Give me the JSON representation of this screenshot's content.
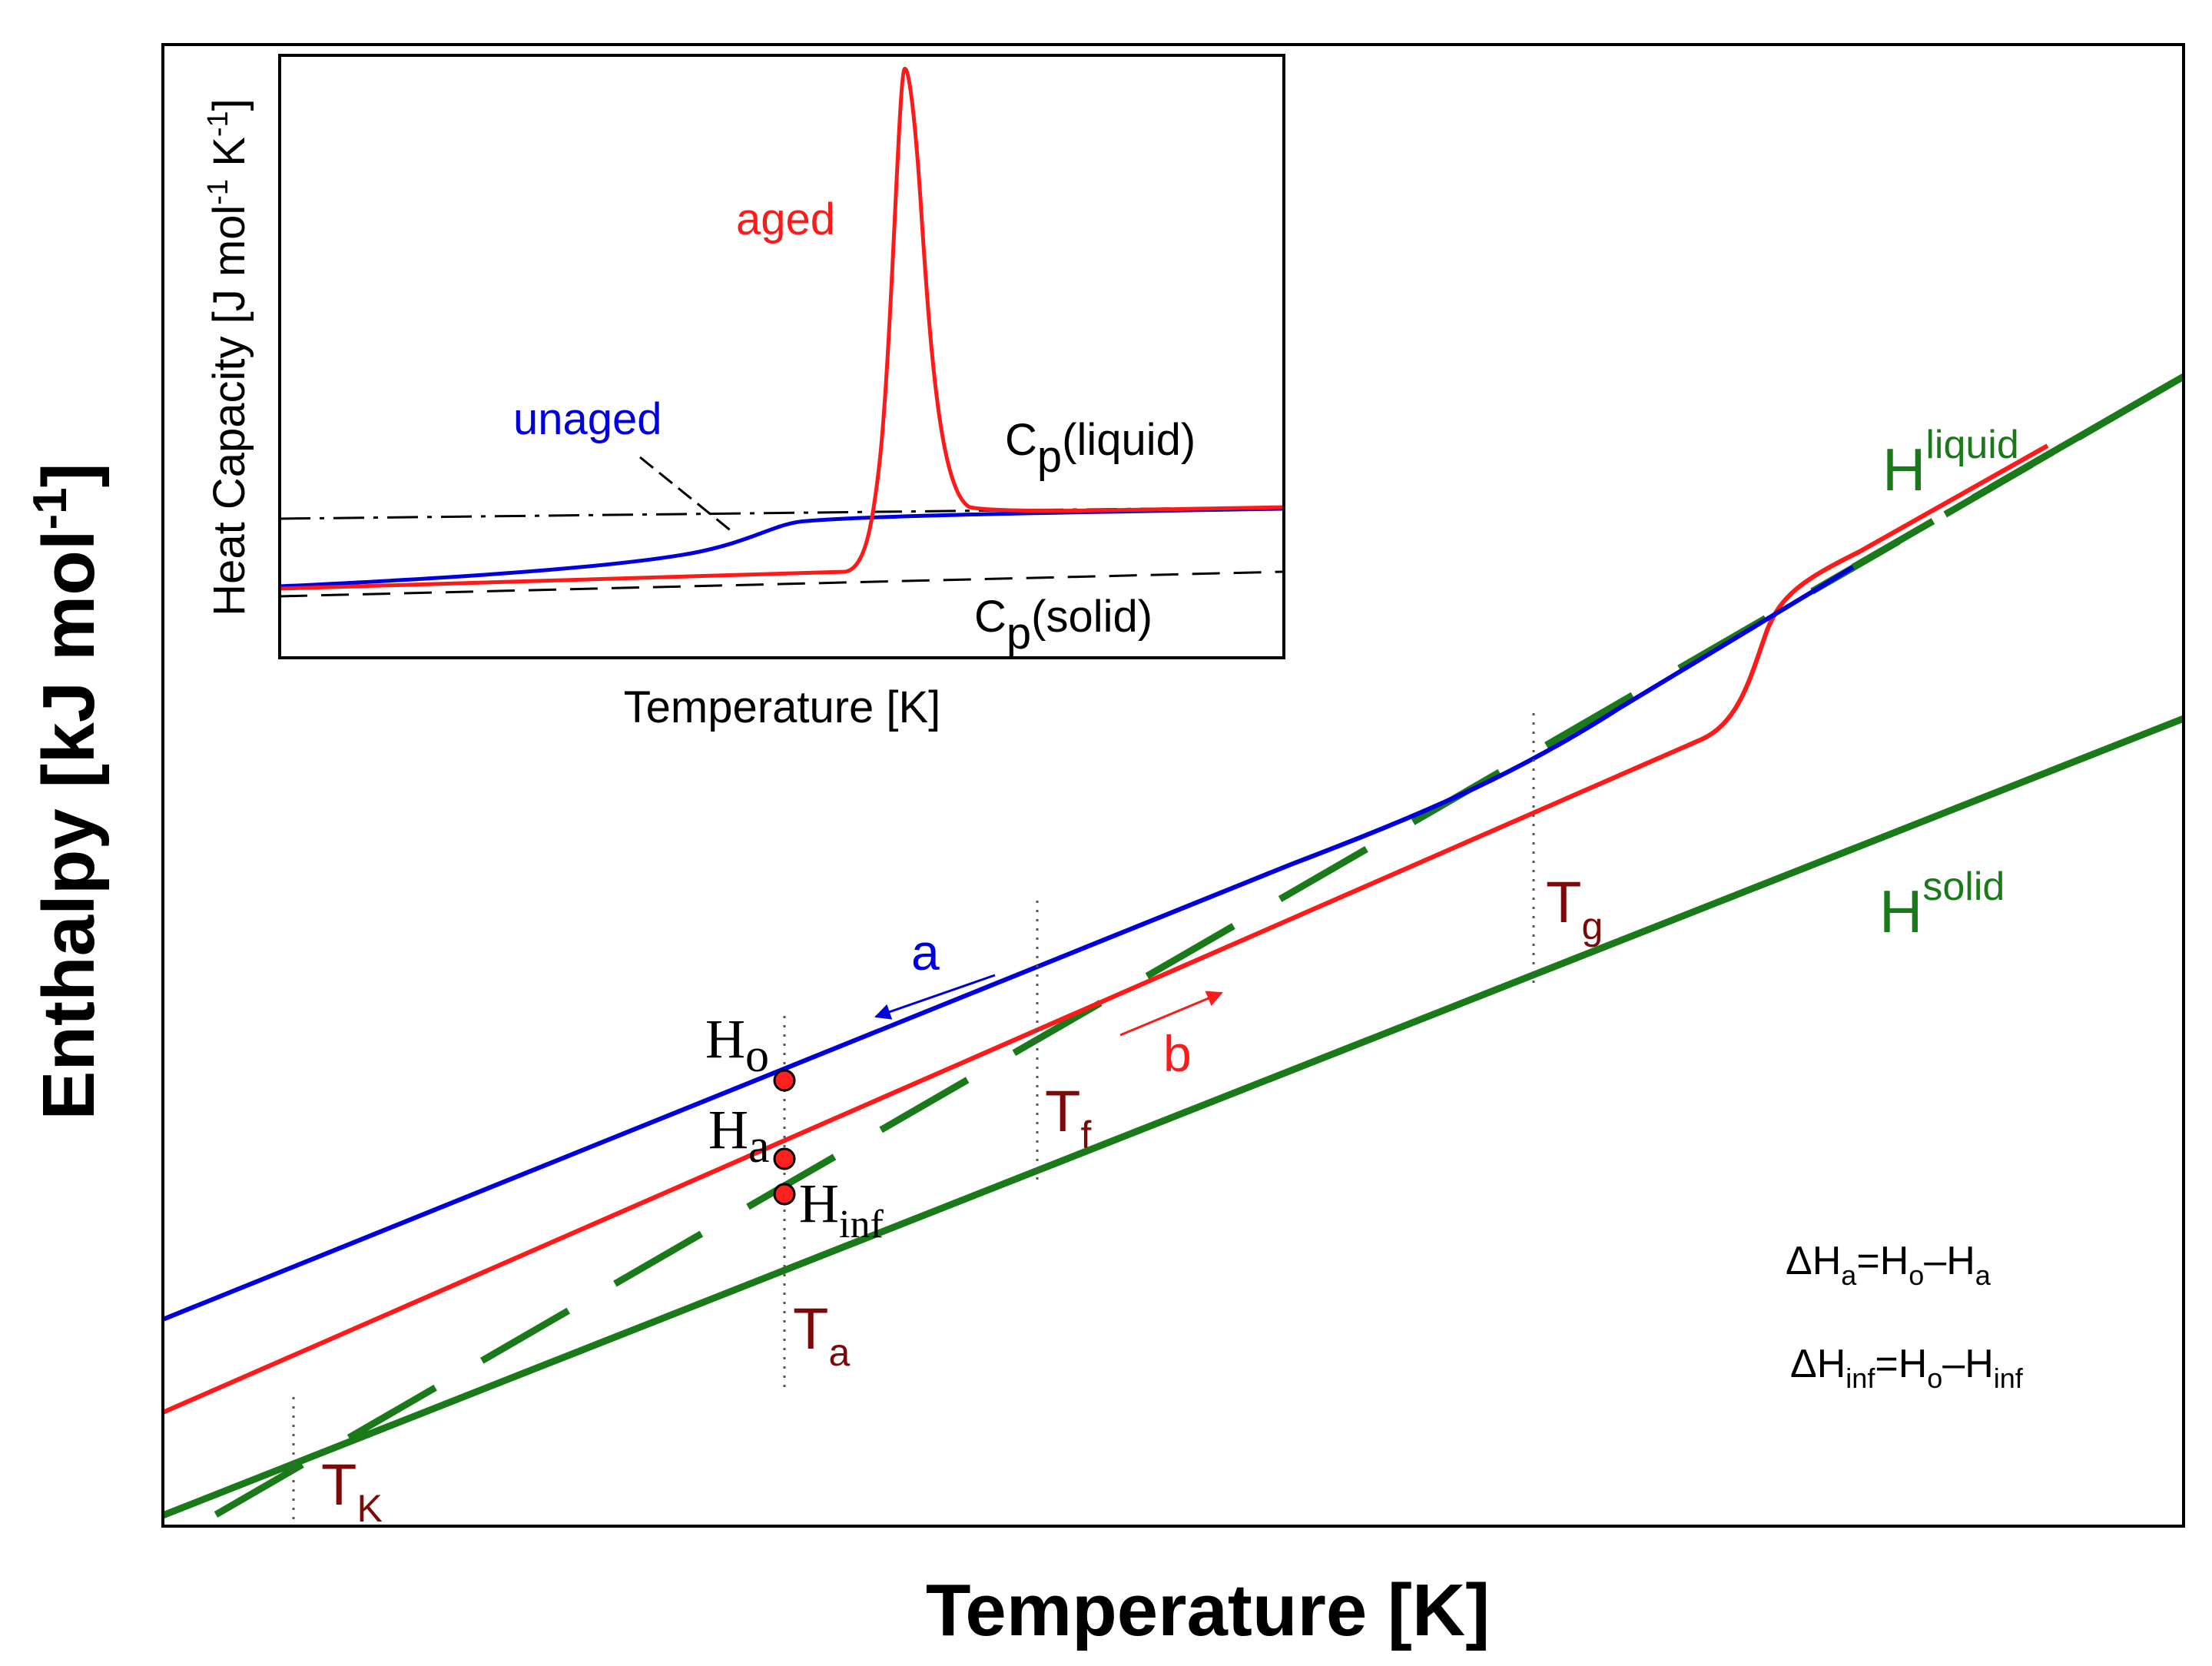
{
  "colors": {
    "unaged": "#0000dd",
    "aged": "#ff1a1a",
    "equilibrium": "#1a7a1a",
    "temperature_marker": "#7a0a0a",
    "axis": "#000000"
  },
  "main": {
    "ylabel": "Enthalpy [kJ mol",
    "ylabel_sup": "-1",
    "ylabel_end": "]",
    "xlabel": "Temperature [K]",
    "labels": {
      "h_liquid": {
        "base": "H",
        "sup": "liquid"
      },
      "h_solid": {
        "base": "H",
        "sup": "solid"
      },
      "t_g": {
        "base": "T",
        "sub": "g"
      },
      "t_f": {
        "base": "T",
        "sub": "f"
      },
      "t_a": {
        "base": "T",
        "sub": "a"
      },
      "t_k": {
        "base": "T",
        "sub": "K"
      },
      "h_o": {
        "base": "H",
        "sub": "o"
      },
      "h_a": {
        "base": "H",
        "sub": "a"
      },
      "h_inf": {
        "base": "H",
        "sub": "inf"
      },
      "path_a": "a",
      "path_b": "b"
    },
    "equations": {
      "delta_ha": {
        "d": "ΔH",
        "s1": "a",
        "m1": "=H",
        "s2": "o",
        "m2": "–H",
        "s3": "a"
      },
      "delta_hinf": {
        "d": "ΔH",
        "s1": "inf",
        "m1": "=H",
        "s2": "o",
        "m2": "–H",
        "s3": "inf"
      }
    }
  },
  "inset": {
    "ylabel": "Heat Capacity  [J mol",
    "ylabel_sup1": "-1",
    "ylabel_mid": " K",
    "ylabel_sup2": "-1",
    "ylabel_end": "]",
    "xlabel": "Temperature  [K]",
    "labels": {
      "aged": "aged",
      "unaged": "unaged",
      "cp_liquid": {
        "base": "C",
        "sub": "p",
        "rest": "(liquid)"
      },
      "cp_solid": {
        "base": "C",
        "sub": "p",
        "rest": "(solid)"
      }
    }
  }
}
